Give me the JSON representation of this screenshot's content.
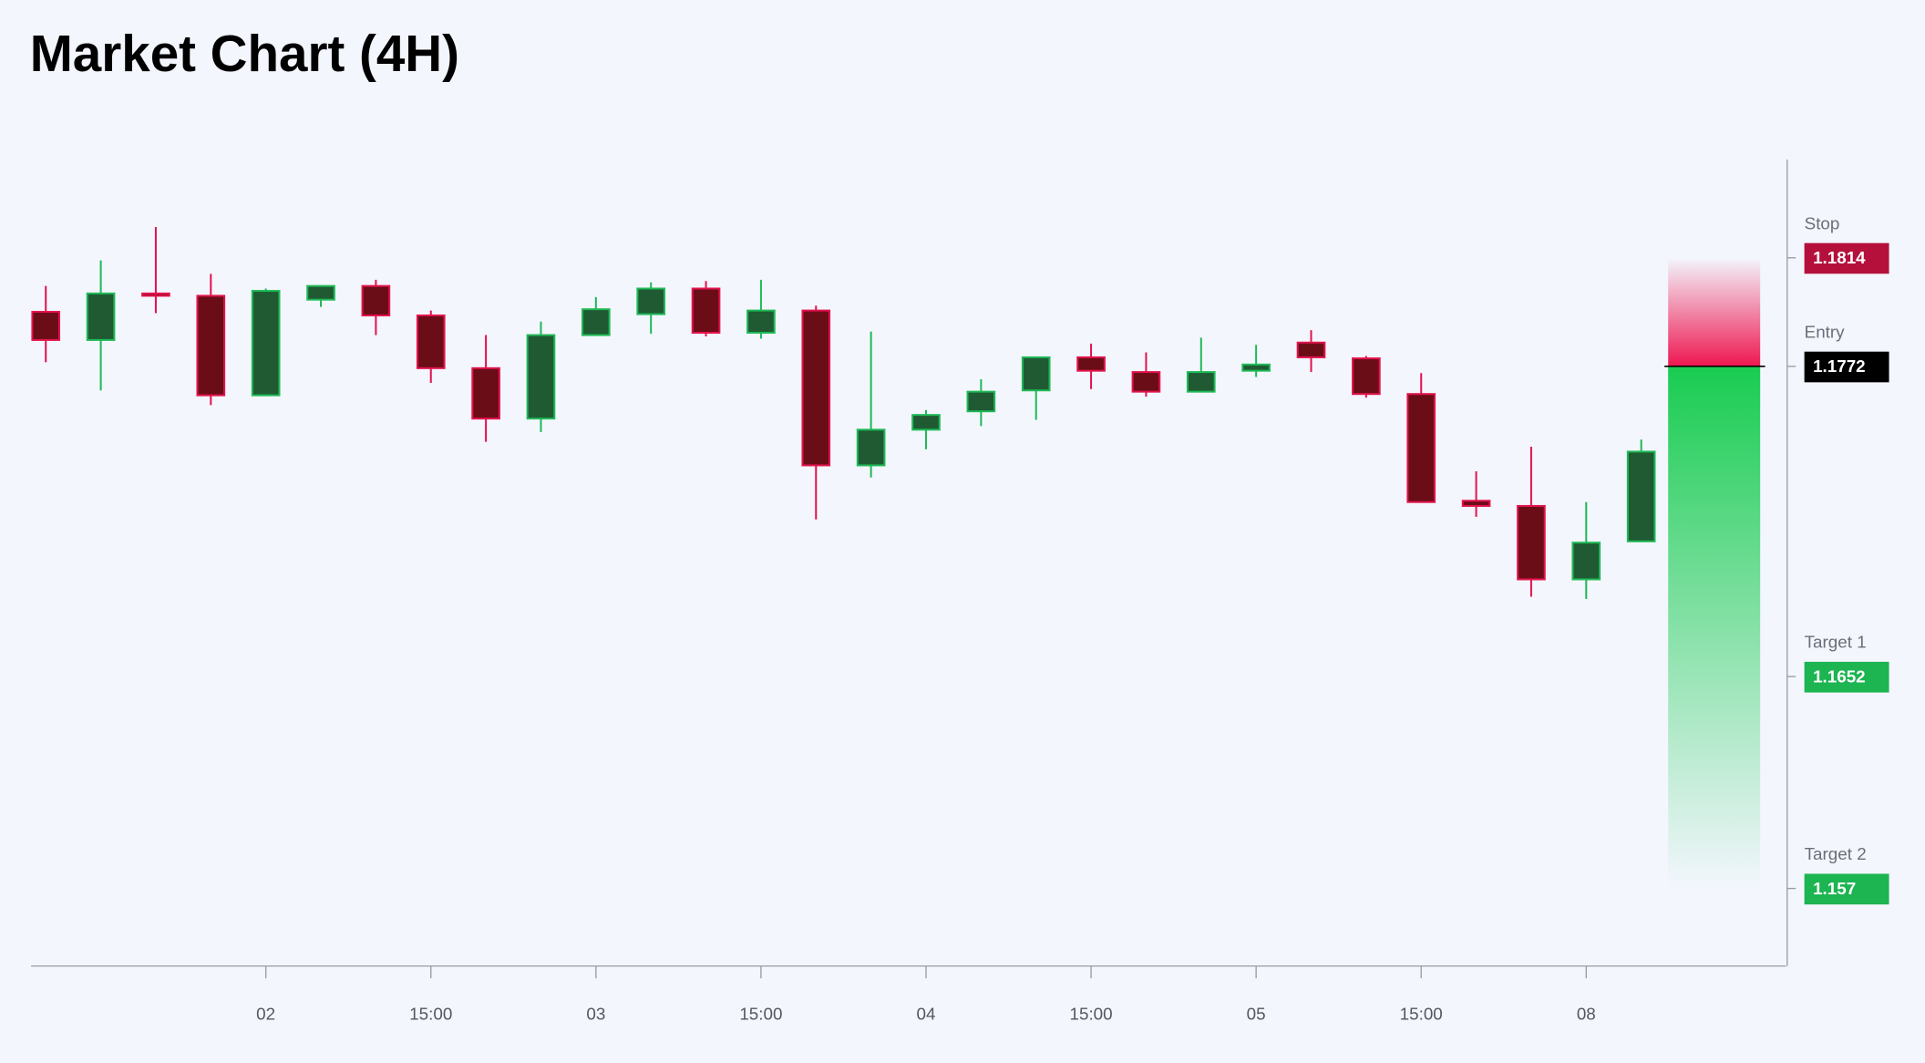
{
  "chart_data": {
    "type": "candlestick",
    "title": "Market Chart (4H)",
    "categories": [
      null,
      null,
      null,
      null,
      "02",
      null,
      null,
      "15:00",
      null,
      null,
      "03",
      null,
      null,
      "15:00",
      null,
      null,
      "04",
      null,
      null,
      "15:00",
      null,
      null,
      "05",
      null,
      null,
      "15:00",
      null,
      null,
      "08",
      null
    ],
    "open": [
      1.17931,
      1.17822,
      1.18002,
      1.17993,
      1.17608,
      1.17978,
      1.18031,
      1.17917,
      1.17713,
      1.17518,
      1.17841,
      1.17922,
      1.18021,
      1.1785,
      1.17936,
      1.17337,
      1.17475,
      1.17546,
      1.17627,
      1.17755,
      1.17698,
      1.17622,
      1.17703,
      1.17812,
      1.17751,
      1.17613,
      1.172,
      1.1718,
      1.16896,
      1.17043
    ],
    "high": [
      1.18031,
      1.1813,
      1.18259,
      1.18078,
      1.18021,
      1.18031,
      1.18055,
      1.17936,
      1.17841,
      1.17893,
      1.17988,
      1.18045,
      1.1805,
      1.18055,
      1.17955,
      1.17855,
      1.17551,
      1.1767,
      1.17755,
      1.17808,
      1.17774,
      1.17831,
      1.17803,
      1.1786,
      1.1776,
      1.17694,
      1.17314,
      1.17409,
      1.17195,
      1.17437
    ],
    "low": [
      1.17736,
      1.17627,
      1.17926,
      1.1757,
      1.17608,
      1.1795,
      1.17841,
      1.17656,
      1.17428,
      1.17466,
      1.17841,
      1.17846,
      1.17836,
      1.17827,
      1.17128,
      1.1729,
      1.17399,
      1.17489,
      1.17513,
      1.17632,
      1.17603,
      1.17622,
      1.17679,
      1.17698,
      1.17599,
      1.17195,
      1.17138,
      1.16829,
      1.1682,
      1.17043
    ],
    "close": [
      1.17822,
      1.18002,
      1.17993,
      1.17608,
      1.18012,
      1.18031,
      1.17917,
      1.17713,
      1.17518,
      1.17841,
      1.17941,
      1.18021,
      1.1785,
      1.17936,
      1.17337,
      1.17475,
      1.17532,
      1.17622,
      1.17755,
      1.17703,
      1.17622,
      1.17698,
      1.17727,
      1.17755,
      1.17613,
      1.17195,
      1.1718,
      1.16896,
      1.17038,
      1.1739
    ],
    "up_color": {
      "fill": "#1f5a33",
      "stroke": "#1fb956"
    },
    "down_color": {
      "fill": "#6a0d17",
      "stroke": "#e3134d"
    },
    "ylim": [
      1.154,
      1.1852
    ],
    "levels": [
      {
        "name": "Stop",
        "value": 1.1814,
        "color": "#b5103c"
      },
      {
        "name": "Entry",
        "value": 1.1772,
        "color": "#000000"
      },
      {
        "name": "Target 1",
        "value": 1.1652,
        "color": "#1db452"
      },
      {
        "name": "Target 2",
        "value": 1.157,
        "color": "#1db452"
      }
    ]
  }
}
